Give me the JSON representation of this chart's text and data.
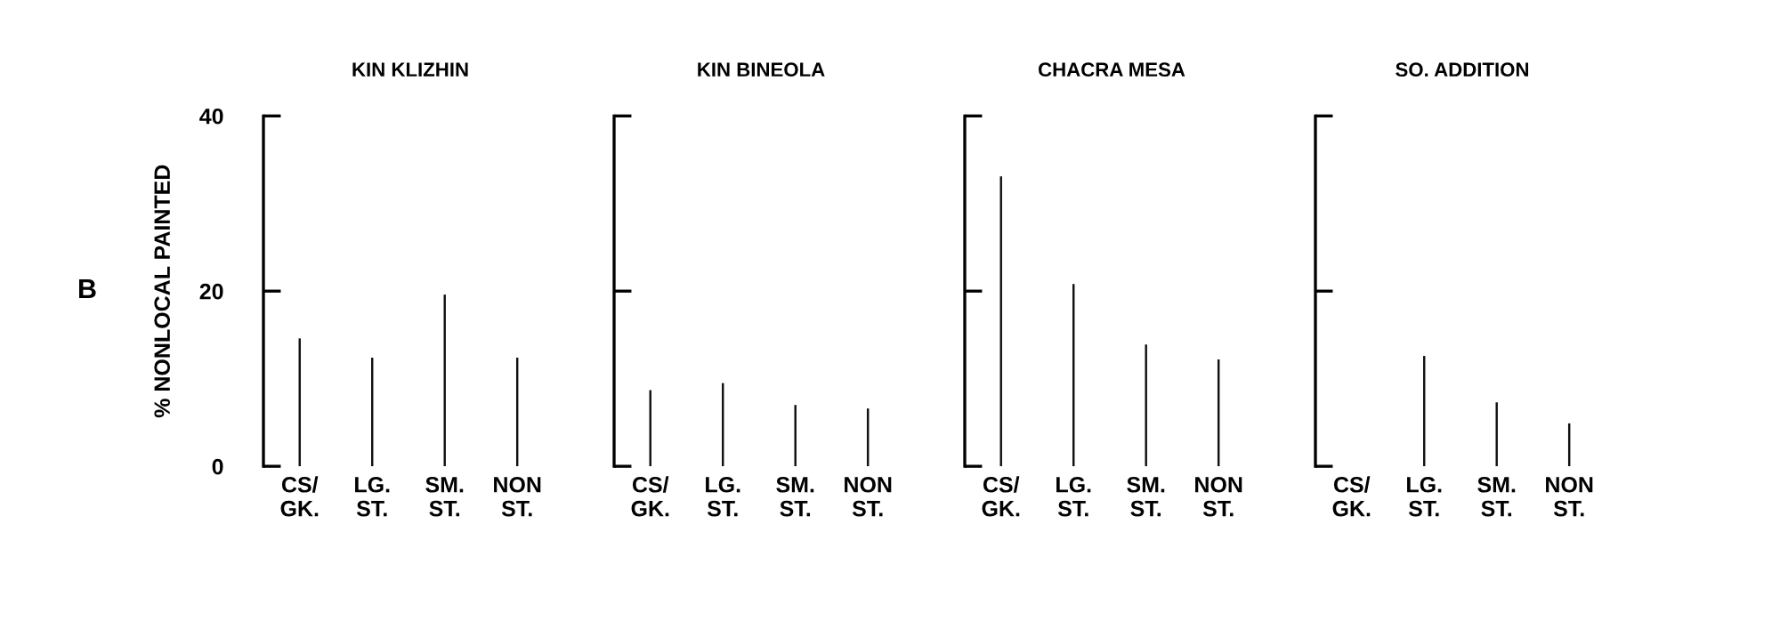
{
  "chart_data": [
    {
      "type": "bar",
      "title": "KIN KLIZHIN",
      "ylabel": "% NONLOCAL PAINTED",
      "annotations": [
        "B"
      ],
      "categories": [
        "CS/\nGK.",
        "LG.\nST.",
        "SM.\nST.",
        "NON\nST."
      ],
      "values": [
        14.6,
        12.4,
        19.6,
        12.4
      ],
      "color": "#111111",
      "ylim": [
        0,
        40
      ],
      "yticks": [
        0,
        20,
        40
      ],
      "grid": false,
      "legend": false
    },
    {
      "type": "bar",
      "title": "KIN BINEOLA",
      "categories": [
        "CS/\nGK.",
        "LG.\nST.",
        "SM.\nST.",
        "NON\nST."
      ],
      "values": [
        8.7,
        9.5,
        7.0,
        6.6
      ],
      "color": "#111111",
      "ylim": [
        0,
        40
      ],
      "yticks": [
        0,
        20,
        40
      ],
      "tick_labels": "x",
      "grid": false,
      "legend": false
    },
    {
      "type": "bar",
      "title": "CHACRA MESA",
      "categories": [
        "CS/\nGK.",
        "LG.\nST.",
        "SM.\nST.",
        "NON\nST."
      ],
      "values": [
        33.1,
        20.8,
        13.9,
        12.2
      ],
      "color": "#111111",
      "ylim": [
        0,
        40
      ],
      "yticks": [
        0,
        20,
        40
      ],
      "tick_labels": "x",
      "grid": false,
      "legend": false
    },
    {
      "type": "bar",
      "title": "SO. ADDITION",
      "categories": [
        "CS/\nGK.",
        "LG.\nST.",
        "SM.\nST.",
        "NON\nST."
      ],
      "values": [
        null,
        12.6,
        7.3,
        4.9
      ],
      "color": "#111111",
      "ylim": [
        0,
        40
      ],
      "yticks": [
        0,
        20,
        40
      ],
      "tick_labels": "x",
      "grid": false,
      "legend": false
    }
  ]
}
